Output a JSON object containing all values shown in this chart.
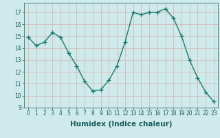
{
  "x": [
    0,
    1,
    2,
    3,
    4,
    5,
    6,
    7,
    8,
    9,
    10,
    11,
    12,
    13,
    14,
    15,
    16,
    17,
    18,
    19,
    20,
    21,
    22,
    23
  ],
  "y": [
    14.9,
    14.2,
    14.5,
    15.3,
    14.9,
    13.6,
    12.5,
    11.2,
    10.4,
    10.5,
    11.3,
    12.5,
    14.5,
    17.0,
    16.8,
    17.0,
    17.0,
    17.3,
    16.5,
    15.0,
    13.0,
    11.5,
    10.3,
    9.5
  ],
  "line_color": "#1a7a6e",
  "marker": "+",
  "marker_size": 4,
  "line_width": 1.0,
  "bg_color": "#ceeaea",
  "grid_color": "#d8b0b0",
  "xlabel": "Humidex (Indice chaleur)",
  "xlim": [
    -0.5,
    23.5
  ],
  "ylim": [
    9,
    17.8
  ],
  "yticks": [
    9,
    10,
    11,
    12,
    13,
    14,
    15,
    16,
    17
  ],
  "xtick_labels": [
    "0",
    "1",
    "2",
    "3",
    "4",
    "5",
    "6",
    "7",
    "8",
    "9",
    "10",
    "11",
    "12",
    "13",
    "14",
    "15",
    "16",
    "17",
    "18",
    "19",
    "20",
    "21",
    "22",
    "23"
  ],
  "font_color": "#1a5a5a",
  "tick_fontsize": 5.5,
  "label_fontsize": 7.5
}
